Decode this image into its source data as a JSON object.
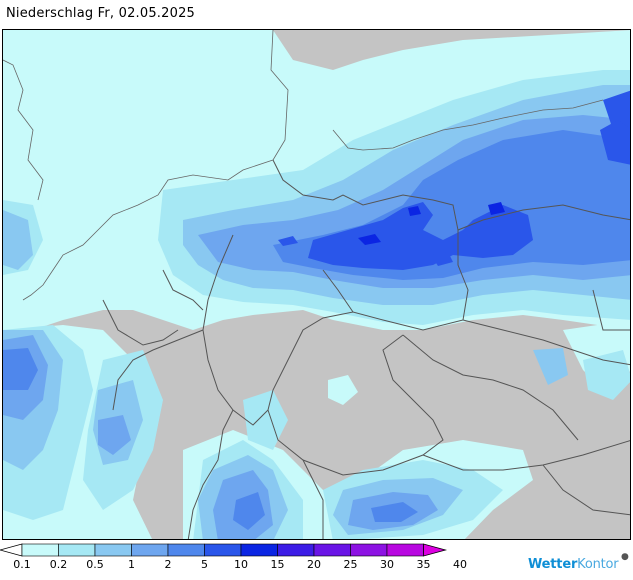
{
  "title": "Niederschlag Fr, 02.05.2025",
  "legend": {
    "colors": [
      "#ffffff",
      "#c8fafa",
      "#a6e8f4",
      "#89c8f1",
      "#6ea6ef",
      "#4f87ec",
      "#2a56ea",
      "#0b25e3",
      "#3c1ce6",
      "#6a14e6",
      "#8d12e3",
      "#b808e0",
      "#dc00e0"
    ],
    "labels": [
      "0.1",
      "0.2",
      "0.5",
      "1",
      "2",
      "5",
      "10",
      "15",
      "20",
      "25",
      "30",
      "35",
      "40"
    ]
  },
  "logo": {
    "brand_a": "Wetter",
    "brand_b": "Kontor",
    "mark": "●"
  },
  "map": {
    "land_color": "#c4c4c4",
    "sea_color": "#ffffff",
    "border_color": "#555555"
  }
}
